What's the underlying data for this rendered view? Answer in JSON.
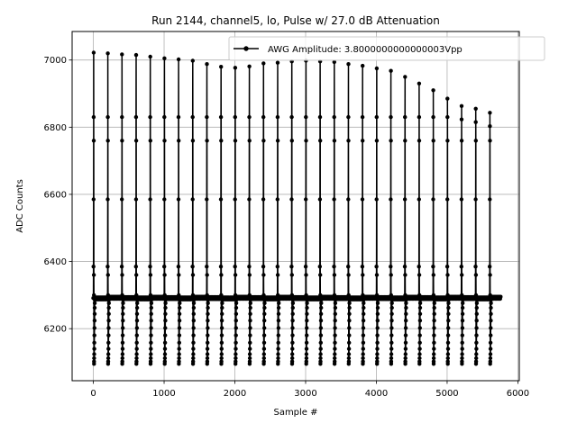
{
  "chart_data": {
    "type": "line",
    "title": "Run 2144, channel5, lo, Pulse w/ 27.0 dB Attenuation",
    "xlabel": "Sample #",
    "ylabel": "ADC Counts",
    "xlim": [
      -300,
      6020
    ],
    "ylim": [
      6045,
      7085
    ],
    "xticks": [
      0,
      1000,
      2000,
      3000,
      4000,
      5000,
      6000
    ],
    "yticks": [
      6200,
      6400,
      6600,
      6800,
      7000
    ],
    "grid": true,
    "legend_position": "upper right",
    "baseline": 6291,
    "series": [
      {
        "name": "AWG Amplitude: 3.8000000000000003Vpp",
        "color": "#000000",
        "marker": "circle",
        "pulse_period_samples": 200,
        "pulse_start_samples": [
          0,
          200,
          400,
          600,
          800,
          1000,
          1200,
          1400,
          1600,
          1800,
          2000,
          2200,
          2400,
          2600,
          2800,
          3000,
          3200,
          3400,
          3600,
          3800,
          4000,
          4200,
          4400,
          4600,
          4800,
          5000,
          5200,
          5400,
          5600
        ],
        "pulse_peaks": [
          7022,
          7020,
          7017,
          7015,
          7010,
          7005,
          7002,
          6998,
          6988,
          6980,
          6977,
          6981,
          6990,
          6992,
          6996,
          6998,
          6996,
          6994,
          6988,
          6983,
          6975,
          6968,
          6950,
          6930,
          6910,
          6885,
          6863,
          6855,
          6843
        ]
      }
    ]
  }
}
